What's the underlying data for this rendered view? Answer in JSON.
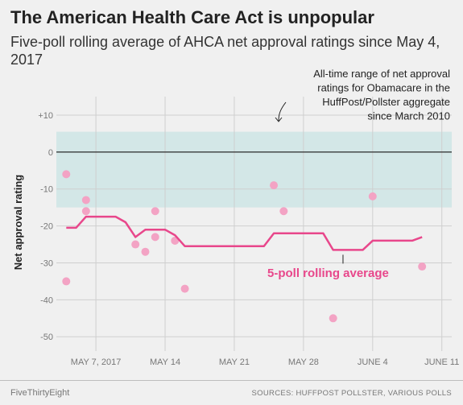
{
  "header": {
    "title": "The American Health Care Act is unpopular",
    "subtitle": "Five-poll rolling average of AHCA net approval ratings since May 4, 2017"
  },
  "footer": {
    "credit": "FiveThirtyEight",
    "sources": "SOURCES: HUFFPOST POLLSTER, VARIOUS POLLS"
  },
  "colors": {
    "background": "#f0f0f0",
    "band": "#d3e7e7",
    "line": "#e8478b",
    "dots": "#f3a3c4",
    "grid": "#cfcfcf",
    "zero_line": "#000000"
  },
  "chart_data": {
    "type": "line",
    "ylabel": "Net approval rating",
    "ylim": [
      -53,
      15
    ],
    "y_ticks": [
      10,
      0,
      -10,
      -20,
      -30,
      -40,
      -50
    ],
    "y_tick_labels": [
      "+10",
      "0",
      "-10",
      "-20",
      "-30",
      "-40",
      "-50"
    ],
    "xlim": [
      "2017-05-03",
      "2017-06-12"
    ],
    "x_ticks": [
      "2017-05-07",
      "2017-05-14",
      "2017-05-21",
      "2017-05-28",
      "2017-06-04",
      "2017-06-11"
    ],
    "x_tick_labels": [
      "MAY 7, 2017",
      "MAY 14",
      "MAY 21",
      "MAY 28",
      "JUNE 4",
      "JUNE 11"
    ],
    "grid": true,
    "band": {
      "range": [
        -15,
        5.5
      ],
      "annotation": [
        "All-time range of net approval",
        "ratings for Obamacare in the",
        "HuffPost/Pollster aggregate",
        "since March 2010"
      ]
    },
    "series": [
      {
        "name": "5-poll rolling average",
        "type": "line",
        "points": [
          [
            "2017-05-04",
            -20.5
          ],
          [
            "2017-05-05",
            -20.5
          ],
          [
            "2017-05-06",
            -17.5
          ],
          [
            "2017-05-07",
            -17.5
          ],
          [
            "2017-05-08",
            -17.5
          ],
          [
            "2017-05-09",
            -17.5
          ],
          [
            "2017-05-10",
            -19
          ],
          [
            "2017-05-11",
            -23
          ],
          [
            "2017-05-12",
            -21
          ],
          [
            "2017-05-13",
            -21
          ],
          [
            "2017-05-14",
            -21
          ],
          [
            "2017-05-15",
            -22.5
          ],
          [
            "2017-05-16",
            -25.5
          ],
          [
            "2017-05-17",
            -25.5
          ],
          [
            "2017-05-18",
            -25.5
          ],
          [
            "2017-05-19",
            -25.5
          ],
          [
            "2017-05-20",
            -25.5
          ],
          [
            "2017-05-21",
            -25.5
          ],
          [
            "2017-05-22",
            -25.5
          ],
          [
            "2017-05-23",
            -25.5
          ],
          [
            "2017-05-24",
            -25.5
          ],
          [
            "2017-05-25",
            -22
          ],
          [
            "2017-05-26",
            -22
          ],
          [
            "2017-05-27",
            -22
          ],
          [
            "2017-05-28",
            -22
          ],
          [
            "2017-05-29",
            -22
          ],
          [
            "2017-05-30",
            -22
          ],
          [
            "2017-05-31",
            -26.5
          ],
          [
            "2017-06-01",
            -26.5
          ],
          [
            "2017-06-02",
            -26.5
          ],
          [
            "2017-06-03",
            -26.5
          ],
          [
            "2017-06-04",
            -24
          ],
          [
            "2017-06-05",
            -24
          ],
          [
            "2017-06-06",
            -24
          ],
          [
            "2017-06-07",
            -24
          ],
          [
            "2017-06-08",
            -24
          ],
          [
            "2017-06-09",
            -23
          ]
        ]
      },
      {
        "type": "scatter",
        "points": [
          [
            "2017-05-04",
            -6
          ],
          [
            "2017-05-04",
            -35
          ],
          [
            "2017-05-06",
            -13
          ],
          [
            "2017-05-06",
            -16
          ],
          [
            "2017-05-11",
            -25
          ],
          [
            "2017-05-12",
            -27
          ],
          [
            "2017-05-13",
            -16
          ],
          [
            "2017-05-13",
            -23
          ],
          [
            "2017-05-15",
            -24
          ],
          [
            "2017-05-16",
            -37
          ],
          [
            "2017-05-25",
            -9
          ],
          [
            "2017-05-26",
            -16
          ],
          [
            "2017-05-31",
            -45
          ],
          [
            "2017-06-04",
            -12
          ],
          [
            "2017-06-09",
            -31
          ]
        ]
      }
    ]
  }
}
